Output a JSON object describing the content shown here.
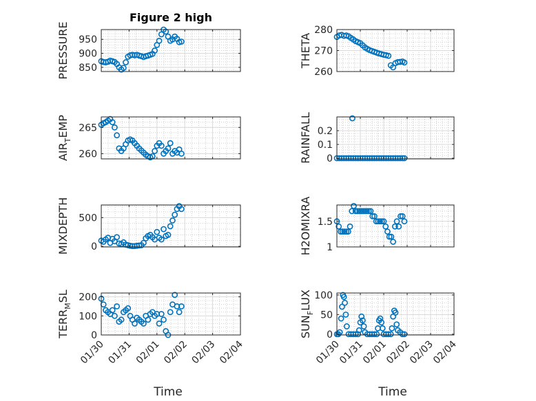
{
  "chart_data": [
    {
      "type": "scatter",
      "title": "Figure 2 high",
      "ylabel": "PRESSURE",
      "xlabel": "",
      "xlim": [
        "01/30",
        "02/04"
      ],
      "ylim": [
        835,
        985
      ],
      "yticks": [
        850,
        900,
        950
      ],
      "grid": true,
      "x_days": [
        0.0,
        0.08,
        0.16,
        0.24,
        0.32,
        0.4,
        0.48,
        0.56,
        0.64,
        0.72,
        0.8,
        0.88,
        0.96,
        1.04,
        1.12,
        1.2,
        1.28,
        1.36,
        1.44,
        1.52,
        1.6,
        1.68,
        1.76,
        1.84,
        1.92,
        2.0,
        2.08,
        2.16,
        2.24,
        2.32,
        2.4,
        2.48,
        2.56,
        2.64,
        2.72,
        2.8,
        2.88
      ],
      "values": [
        872,
        869,
        868,
        870,
        874,
        872,
        869,
        862,
        850,
        842,
        848,
        868,
        888,
        893,
        895,
        893,
        895,
        892,
        890,
        887,
        890,
        892,
        895,
        898,
        910,
        930,
        945,
        968,
        985,
        978,
        960,
        945,
        950,
        960,
        952,
        940,
        942
      ]
    },
    {
      "type": "scatter",
      "ylabel": "THETA",
      "xlim": [
        "01/30",
        "02/04"
      ],
      "ylim": [
        260,
        280
      ],
      "yticks": [
        260,
        270,
        280
      ],
      "grid": true,
      "x_days": [
        0.0,
        0.1,
        0.2,
        0.3,
        0.4,
        0.5,
        0.6,
        0.7,
        0.8,
        0.9,
        1.0,
        1.1,
        1.2,
        1.3,
        1.4,
        1.5,
        1.6,
        1.7,
        1.8,
        1.9,
        2.0,
        2.1,
        2.2,
        2.3,
        2.4,
        2.5,
        2.6,
        2.7,
        2.8,
        2.88
      ],
      "values": [
        276.5,
        277.2,
        277.5,
        277.0,
        277.2,
        276.8,
        276.0,
        275.3,
        274.5,
        274.0,
        273.5,
        272.5,
        271.5,
        270.8,
        270.2,
        269.8,
        269.4,
        269.0,
        268.6,
        268.3,
        268.0,
        267.8,
        267.5,
        263.0,
        262.0,
        264.0,
        264.5,
        264.6,
        264.8,
        264.3
      ]
    },
    {
      "type": "scatter",
      "ylabel": "AIR_TEMP",
      "xlim": [
        "01/30",
        "02/04"
      ],
      "ylim": [
        259,
        267
      ],
      "yticks": [
        260,
        265
      ],
      "grid": true,
      "x_days": [
        0.0,
        0.08,
        0.16,
        0.24,
        0.32,
        0.4,
        0.48,
        0.56,
        0.64,
        0.72,
        0.8,
        0.88,
        0.96,
        1.04,
        1.12,
        1.2,
        1.28,
        1.36,
        1.44,
        1.52,
        1.6,
        1.68,
        1.76,
        1.84,
        1.92,
        2.0,
        2.08,
        2.16,
        2.24,
        2.32,
        2.4,
        2.48,
        2.56,
        2.64,
        2.72,
        2.8,
        2.88
      ],
      "values": [
        265.5,
        265.8,
        266.0,
        266.3,
        266.6,
        266.0,
        265.0,
        263.5,
        261.0,
        260.5,
        261.0,
        261.8,
        262.5,
        262.7,
        262.5,
        262.0,
        261.5,
        261.0,
        260.6,
        260.2,
        259.8,
        259.5,
        259.3,
        259.5,
        260.5,
        261.5,
        262.0,
        261.5,
        260.0,
        260.5,
        261.0,
        262.0,
        260.0,
        260.5,
        260.2,
        260.8,
        260.0
      ]
    },
    {
      "type": "scatter",
      "ylabel": "RAINFALL",
      "xlim": [
        "01/30",
        "02/04"
      ],
      "ylim": [
        -0.005,
        0.3
      ],
      "yticks": [
        0,
        0.1,
        0.2
      ],
      "grid": true,
      "x_days": [
        0.0,
        0.1,
        0.2,
        0.3,
        0.4,
        0.5,
        0.6,
        0.66,
        0.7,
        0.8,
        0.9,
        1.0,
        1.1,
        1.2,
        1.3,
        1.4,
        1.5,
        1.6,
        1.7,
        1.8,
        1.9,
        2.0,
        2.1,
        2.2,
        2.3,
        2.4,
        2.5,
        2.6,
        2.7,
        2.8,
        2.88
      ],
      "values": [
        0,
        0,
        0,
        0,
        0,
        0,
        0,
        0.29,
        0,
        0,
        0,
        0,
        0,
        0,
        0,
        0,
        0,
        0,
        0,
        0,
        0,
        0,
        0,
        0,
        0,
        0,
        0,
        0,
        0,
        0,
        0
      ]
    },
    {
      "type": "scatter",
      "ylabel": "MIXDEPTH",
      "xlim": [
        "01/30",
        "02/04"
      ],
      "ylim": [
        -10,
        720
      ],
      "yticks": [
        0,
        500
      ],
      "grid": true,
      "x_days": [
        0.0,
        0.08,
        0.16,
        0.24,
        0.32,
        0.4,
        0.48,
        0.56,
        0.64,
        0.72,
        0.8,
        0.88,
        0.96,
        1.04,
        1.12,
        1.2,
        1.28,
        1.36,
        1.44,
        1.52,
        1.6,
        1.68,
        1.76,
        1.84,
        1.92,
        2.0,
        2.08,
        2.16,
        2.24,
        2.32,
        2.4,
        2.48,
        2.56,
        2.64,
        2.72,
        2.8,
        2.88
      ],
      "values": [
        100,
        80,
        120,
        150,
        60,
        130,
        90,
        160,
        50,
        40,
        70,
        30,
        20,
        10,
        5,
        5,
        10,
        15,
        20,
        60,
        140,
        180,
        200,
        160,
        120,
        250,
        150,
        120,
        300,
        180,
        200,
        350,
        450,
        550,
        650,
        700,
        650
      ]
    },
    {
      "type": "scatter",
      "ylabel": "H2OMIXRA",
      "xlim": [
        "01/30",
        "02/04"
      ],
      "ylim": [
        1,
        1.82
      ],
      "yticks": [
        1,
        1.5
      ],
      "grid": true,
      "x_days": [
        0.0,
        0.08,
        0.16,
        0.24,
        0.32,
        0.4,
        0.48,
        0.56,
        0.64,
        0.72,
        0.8,
        0.88,
        0.96,
        1.04,
        1.12,
        1.2,
        1.28,
        1.36,
        1.44,
        1.52,
        1.6,
        1.68,
        1.76,
        1.84,
        1.92,
        2.0,
        2.08,
        2.16,
        2.24,
        2.32,
        2.4,
        2.48,
        2.56,
        2.64,
        2.72,
        2.8,
        2.88
      ],
      "values": [
        1.5,
        1.4,
        1.3,
        1.3,
        1.3,
        1.3,
        1.3,
        1.4,
        1.7,
        1.8,
        1.7,
        1.7,
        1.7,
        1.7,
        1.7,
        1.7,
        1.7,
        1.7,
        1.7,
        1.6,
        1.6,
        1.5,
        1.5,
        1.5,
        1.5,
        1.5,
        1.4,
        1.3,
        1.2,
        1.2,
        1.1,
        1.4,
        1.5,
        1.4,
        1.6,
        1.6,
        1.5
      ]
    },
    {
      "type": "scatter",
      "ylabel": "TERR_MSL",
      "xlim": [
        "01/30",
        "02/04"
      ],
      "ylim": [
        0,
        220
      ],
      "yticks": [
        0,
        100,
        200
      ],
      "grid": true,
      "x_days": [
        0.0,
        0.08,
        0.16,
        0.24,
        0.32,
        0.4,
        0.48,
        0.56,
        0.64,
        0.72,
        0.8,
        0.88,
        0.96,
        1.04,
        1.12,
        1.2,
        1.28,
        1.36,
        1.44,
        1.52,
        1.6,
        1.68,
        1.76,
        1.84,
        1.92,
        2.0,
        2.08,
        2.16,
        2.24,
        2.32,
        2.4,
        2.48,
        2.56,
        2.64,
        2.72,
        2.8,
        2.88
      ],
      "values": [
        190,
        160,
        130,
        120,
        110,
        130,
        100,
        150,
        70,
        80,
        120,
        130,
        140,
        100,
        80,
        60,
        90,
        80,
        70,
        60,
        100,
        80,
        110,
        120,
        100,
        110,
        60,
        110,
        80,
        20,
        0,
        120,
        160,
        210,
        150,
        120,
        150
      ]
    },
    {
      "type": "scatter",
      "ylabel": "SUN_FLUX",
      "xlim": [
        "01/30",
        "02/04"
      ],
      "ylim": [
        -2,
        105
      ],
      "yticks": [
        0,
        50,
        100
      ],
      "grid": true,
      "x_days": [
        0.0,
        0.06,
        0.12,
        0.18,
        0.22,
        0.26,
        0.3,
        0.34,
        0.38,
        0.42,
        0.5,
        0.6,
        0.7,
        0.8,
        0.9,
        0.95,
        1.0,
        1.05,
        1.1,
        1.15,
        1.2,
        1.3,
        1.4,
        1.5,
        1.6,
        1.7,
        1.75,
        1.8,
        1.85,
        1.9,
        1.95,
        2.0,
        2.1,
        2.2,
        2.3,
        2.35,
        2.4,
        2.45,
        2.5,
        2.55,
        2.6,
        2.7,
        2.8,
        2.88
      ],
      "values": [
        0,
        0,
        5,
        40,
        70,
        100,
        95,
        80,
        50,
        20,
        0,
        0,
        0,
        0,
        0,
        10,
        30,
        45,
        35,
        20,
        5,
        0,
        0,
        0,
        0,
        0,
        15,
        35,
        40,
        30,
        15,
        0,
        0,
        0,
        0,
        15,
        45,
        60,
        55,
        25,
        10,
        5,
        0,
        0
      ]
    }
  ],
  "xticks": [
    "01/30",
    "01/31",
    "02/01",
    "02/02",
    "02/03",
    "02/04"
  ],
  "xlabel_bottom": "Time",
  "colors": {
    "marker": "#0072bd",
    "axis": "#262626",
    "grid": "#d9d9d9"
  }
}
